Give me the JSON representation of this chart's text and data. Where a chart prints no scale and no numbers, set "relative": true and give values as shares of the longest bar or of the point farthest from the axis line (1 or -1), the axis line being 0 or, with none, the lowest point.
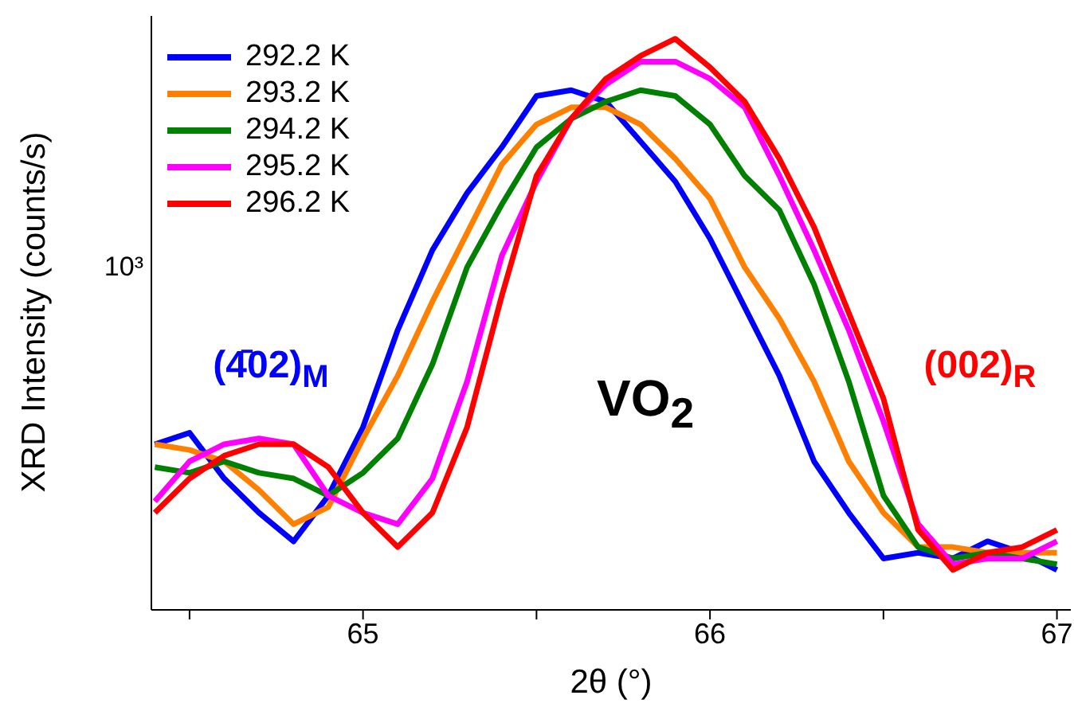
{
  "chart_data": {
    "type": "line",
    "relative": true,
    "xlabel": "2θ (°)",
    "ylabel": "XRD Intensity (counts/s)",
    "x": [
      64.4,
      64.5,
      64.6,
      64.7,
      64.8,
      64.9,
      65.0,
      65.1,
      65.2,
      65.3,
      65.4,
      65.5,
      65.6,
      65.7,
      65.8,
      65.9,
      66.0,
      66.1,
      66.2,
      66.3,
      66.4,
      66.5,
      66.6,
      66.7,
      66.8,
      66.9,
      67.0
    ],
    "xlim": [
      64.39,
      67.04
    ],
    "xticks": [
      {
        "value": 64.5,
        "label": null
      },
      65,
      {
        "value": 65.5,
        "label": null
      },
      66,
      {
        "value": 66.5,
        "label": null
      },
      67
    ],
    "series": [
      {
        "name": "292.2 K",
        "color": "#0000ff",
        "values": [
          0.29,
          0.31,
          0.23,
          0.17,
          0.12,
          0.2,
          0.32,
          0.49,
          0.63,
          0.73,
          0.81,
          0.9,
          0.91,
          0.89,
          0.82,
          0.75,
          0.65,
          0.53,
          0.41,
          0.26,
          0.17,
          0.09,
          0.1,
          0.09,
          0.12,
          0.1,
          0.07
        ]
      },
      {
        "name": "293.2 K",
        "color": "#ff8000",
        "values": [
          0.29,
          0.28,
          0.26,
          0.21,
          0.15,
          0.18,
          0.3,
          0.41,
          0.54,
          0.66,
          0.78,
          0.85,
          0.88,
          0.88,
          0.85,
          0.79,
          0.72,
          0.6,
          0.51,
          0.4,
          0.26,
          0.17,
          0.11,
          0.11,
          0.1,
          0.1,
          0.1
        ]
      },
      {
        "name": "294.2 K",
        "color": "#008000",
        "values": [
          0.25,
          0.24,
          0.26,
          0.24,
          0.23,
          0.2,
          0.24,
          0.3,
          0.43,
          0.6,
          0.71,
          0.81,
          0.86,
          0.89,
          0.91,
          0.9,
          0.85,
          0.76,
          0.7,
          0.57,
          0.4,
          0.2,
          0.11,
          0.09,
          0.1,
          0.09,
          0.08
        ]
      },
      {
        "name": "295.2 K",
        "color": "#ff00ff",
        "values": [
          0.19,
          0.26,
          0.29,
          0.3,
          0.29,
          0.2,
          0.17,
          0.15,
          0.23,
          0.4,
          0.62,
          0.75,
          0.86,
          0.92,
          0.96,
          0.96,
          0.93,
          0.88,
          0.76,
          0.63,
          0.49,
          0.33,
          0.15,
          0.08,
          0.09,
          0.09,
          0.12
        ]
      },
      {
        "name": "296.2 K",
        "color": "#ff0000",
        "values": [
          0.17,
          0.23,
          0.27,
          0.29,
          0.29,
          0.25,
          0.17,
          0.11,
          0.17,
          0.32,
          0.55,
          0.76,
          0.86,
          0.93,
          0.97,
          1.0,
          0.95,
          0.89,
          0.79,
          0.67,
          0.52,
          0.37,
          0.14,
          0.07,
          0.1,
          0.11,
          0.14
        ]
      }
    ],
    "annotations": [
      "10³",
      "(4̄02)$_{M}$",
      "VO$_{2}$",
      "(002)$_{R}$"
    ],
    "legend": "top left",
    "marker": "none",
    "line_style": "solid"
  }
}
